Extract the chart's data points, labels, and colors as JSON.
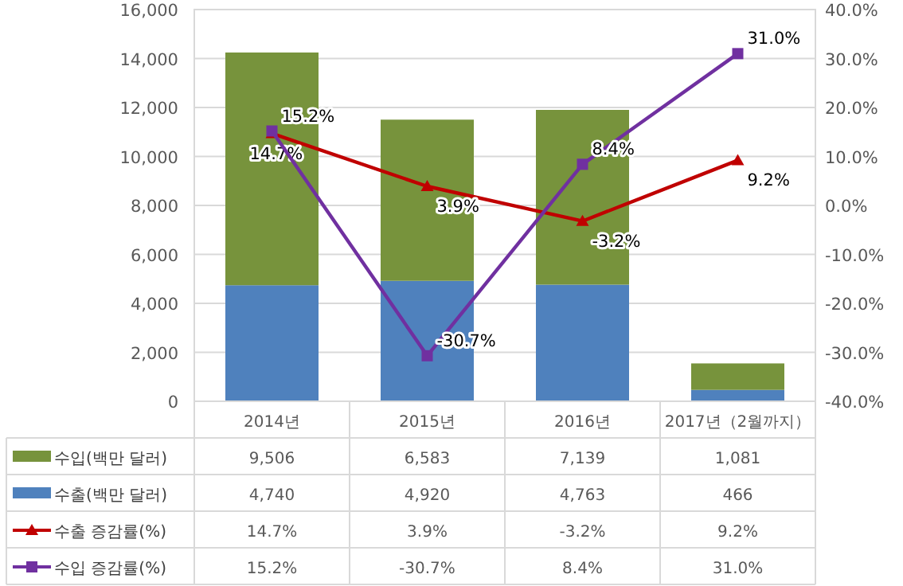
{
  "chart_data": {
    "type": "bar",
    "stacked": true,
    "categories": [
      "2014년",
      "2015년",
      "2016년",
      "2017년（2월까지）"
    ],
    "series": [
      {
        "name": "수출(백만 달러)",
        "color": "#4f81bd",
        "values": [
          4740,
          4920,
          4763,
          466
        ],
        "value_labels": [
          "4,740",
          "4,920",
          "4,763",
          "466"
        ]
      },
      {
        "name": "수입(백만 달러)",
        "color": "#77933c",
        "values": [
          9506,
          6583,
          7139,
          1081
        ],
        "value_labels": [
          "9,506",
          "6,583",
          "7,139",
          "1,081"
        ]
      },
      {
        "name": "수출 증감률(%)",
        "type": "line",
        "axis": "y2",
        "color": "#c00000",
        "marker": "triangle",
        "values": [
          14.7,
          3.9,
          -3.2,
          9.2
        ],
        "value_labels": [
          "14.7%",
          "3.9%",
          "-3.2%",
          "9.2%"
        ]
      },
      {
        "name": "수입 증감률(%)",
        "type": "line",
        "axis": "y2",
        "color": "#7030a0",
        "marker": "square",
        "values": [
          15.2,
          -30.7,
          8.4,
          31.0
        ],
        "value_labels": [
          "15.2%",
          "-30.7%",
          "8.4%",
          "31.0%"
        ]
      }
    ],
    "ylim": [
      0,
      16000
    ],
    "yticks": [
      {
        "value": 0,
        "label": "0"
      },
      {
        "value": 2000,
        "label": "2,000"
      },
      {
        "value": 4000,
        "label": "4,000"
      },
      {
        "value": 6000,
        "label": "6,000"
      },
      {
        "value": 8000,
        "label": "8,000"
      },
      {
        "value": 10000,
        "label": "10,000"
      },
      {
        "value": 12000,
        "label": "12,000"
      },
      {
        "value": 14000,
        "label": "14,000"
      },
      {
        "value": 16000,
        "label": "16,000"
      }
    ],
    "y2lim": [
      -40,
      40
    ],
    "y2ticks": [
      {
        "value": -40,
        "label": "-40.0%"
      },
      {
        "value": -30,
        "label": "-30.0%"
      },
      {
        "value": -20,
        "label": "-20.0%"
      },
      {
        "value": -10,
        "label": "-10.0%"
      },
      {
        "value": 0,
        "label": "0.0%"
      },
      {
        "value": 10,
        "label": "10.0%"
      },
      {
        "value": 20,
        "label": "20.0%"
      },
      {
        "value": 30,
        "label": "30.0%"
      },
      {
        "value": 40,
        "label": "40.0%"
      }
    ],
    "grid": "y",
    "legend": "bottom",
    "line_style": "solid"
  }
}
